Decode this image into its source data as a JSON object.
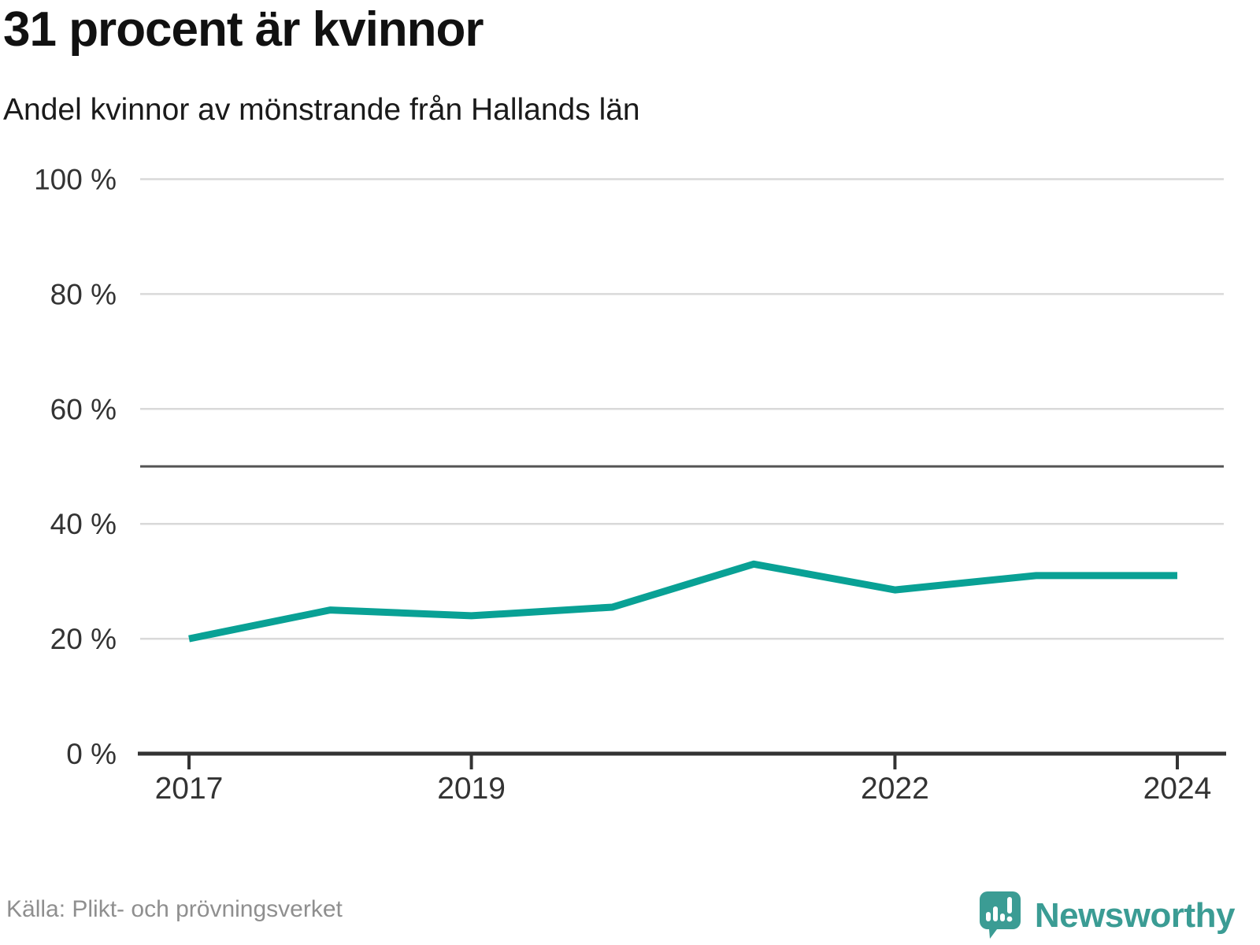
{
  "header": {
    "title": "31 procent är kvinnor",
    "subtitle": "Andel kvinnor av mönstrande från Hallands län"
  },
  "footer": {
    "source": "Källa: Plikt- och prövningsverket",
    "brand_name": "Newsworthy",
    "brand_icon": "bar-chart-pin-icon"
  },
  "colors": {
    "line": "#09a195",
    "grid": "#d9d9d9",
    "reference_line": "#555555",
    "axis": "#333333",
    "tick_text": "#333333",
    "muted_text": "#8f8f8f",
    "brand_teal": "#3b9c94"
  },
  "chart_data": {
    "type": "line",
    "title": "31 procent är kvinnor",
    "subtitle": "Andel kvinnor av mönstrande från Hallands län",
    "x": [
      2017,
      2018,
      2019,
      2020,
      2021,
      2022,
      2023,
      2024
    ],
    "series": [
      {
        "name": "Andel kvinnor av mönstrande",
        "values": [
          20,
          25,
          24,
          25.5,
          33,
          28.5,
          31,
          31
        ]
      }
    ],
    "xlabel": "",
    "ylabel": "",
    "ylim": [
      0,
      100
    ],
    "yticks": [
      0,
      20,
      40,
      60,
      80,
      100
    ],
    "ytick_format": "{v} %",
    "xticks": [
      2017,
      2019,
      2022,
      2024
    ],
    "reference_line": 50,
    "grid": "horizontal",
    "legend": "none"
  }
}
